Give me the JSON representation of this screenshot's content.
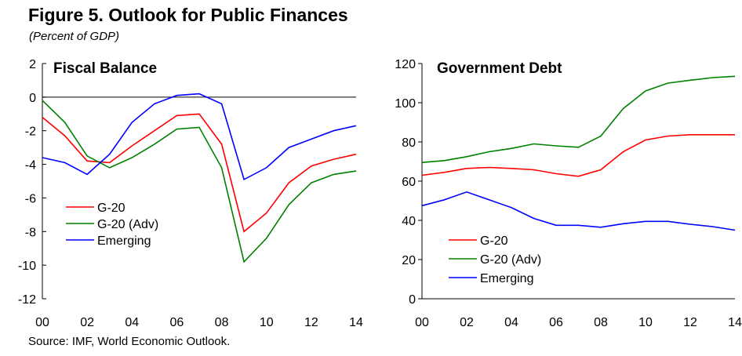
{
  "figure": {
    "title": "Figure 5. Outlook for Public Finances",
    "subtitle": "(Percent of GDP)",
    "source": "Source: IMF, World Economic Outlook."
  },
  "colors": {
    "g20": "#ff0000",
    "g20_adv": "#008000",
    "emerging": "#0000ff"
  },
  "chart_data": [
    {
      "type": "line",
      "title": "Fiscal Balance",
      "x": [
        0,
        1,
        2,
        3,
        4,
        5,
        6,
        7,
        8,
        9,
        10,
        11,
        12,
        13,
        14
      ],
      "xticks": [
        "00",
        "02",
        "04",
        "06",
        "08",
        "10",
        "12",
        "14"
      ],
      "ylim": [
        -12,
        2
      ],
      "yticks": [
        "2",
        "0",
        "-2",
        "-4",
        "-6",
        "-8",
        "-10",
        "-12"
      ],
      "zero_line": true,
      "legend_position": "lower-left",
      "series": [
        {
          "name": "G-20",
          "color": "#ff0000",
          "values": [
            -1.2,
            -2.3,
            -3.8,
            -3.9,
            -2.9,
            -2.0,
            -1.1,
            -1.0,
            -2.8,
            -8.0,
            -6.9,
            -5.1,
            -4.1,
            -3.7,
            -3.4
          ]
        },
        {
          "name": "G-20 (Adv)",
          "color": "#008000",
          "values": [
            -0.2,
            -1.5,
            -3.5,
            -4.2,
            -3.6,
            -2.8,
            -1.9,
            -1.8,
            -4.2,
            -9.8,
            -8.4,
            -6.4,
            -5.1,
            -4.6,
            -4.4
          ]
        },
        {
          "name": "Emerging",
          "color": "#0000ff",
          "values": [
            -3.6,
            -3.9,
            -4.6,
            -3.4,
            -1.5,
            -0.4,
            0.1,
            0.2,
            -0.4,
            -4.9,
            -4.2,
            -3.0,
            -2.5,
            -2.0,
            -1.7
          ]
        }
      ]
    },
    {
      "type": "line",
      "title": "Government Debt",
      "x": [
        0,
        1,
        2,
        3,
        4,
        5,
        6,
        7,
        8,
        9,
        10,
        11,
        12,
        13,
        14
      ],
      "xticks": [
        "00",
        "02",
        "04",
        "06",
        "08",
        "10",
        "12",
        "14"
      ],
      "ylim": [
        0,
        120
      ],
      "yticks": [
        "120",
        "100",
        "80",
        "60",
        "40",
        "20",
        "0"
      ],
      "zero_line": false,
      "legend_position": "lower-left",
      "series": [
        {
          "name": "G-20",
          "color": "#ff0000",
          "values": [
            63,
            64.5,
            66.5,
            67,
            66.5,
            65.8,
            63.8,
            62.5,
            65.8,
            75,
            81,
            83,
            83.7,
            83.7,
            83.7
          ]
        },
        {
          "name": "G-20 (Adv)",
          "color": "#008000",
          "values": [
            69.5,
            70.5,
            72.5,
            75,
            76.7,
            79,
            78,
            77.3,
            83,
            97,
            106,
            110,
            111.5,
            112.8,
            113.5
          ]
        },
        {
          "name": "Emerging",
          "color": "#0000ff",
          "values": [
            47.5,
            50.5,
            54.5,
            50.5,
            46.5,
            41,
            37.5,
            37.5,
            36.5,
            38.3,
            39.5,
            39.5,
            38,
            36.8,
            35
          ]
        }
      ]
    }
  ]
}
